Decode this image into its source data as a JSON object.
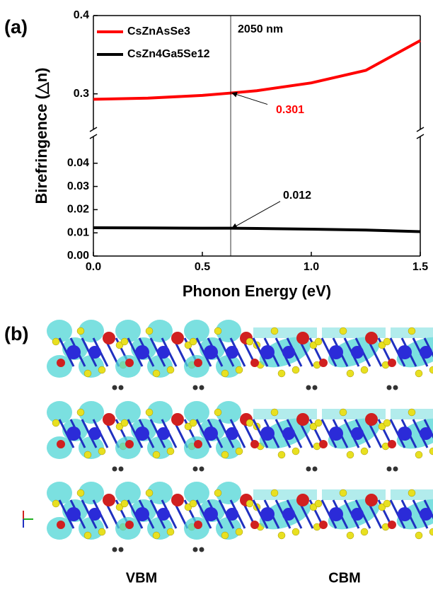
{
  "chart_data": {
    "type": "line",
    "xlabel": "Phonon Energy (eV)",
    "ylabel": "Birefringence (△n)",
    "x": [
      0,
      0.25,
      0.5,
      0.63,
      0.75,
      1.0,
      1.25,
      1.5
    ],
    "series": [
      {
        "name": "CsZnAsSe3",
        "color": "#ff0000",
        "values": [
          0.293,
          0.2945,
          0.298,
          0.301,
          0.304,
          0.314,
          0.33,
          0.368
        ]
      },
      {
        "name": "CsZn4Ga5Se12",
        "color": "#000000",
        "values": [
          0.0122,
          0.0121,
          0.012,
          0.012,
          0.0119,
          0.0116,
          0.0112,
          0.0105
        ]
      }
    ],
    "xlim": [
      0,
      1.5
    ],
    "xticks": [
      {
        "value": 0,
        "label": "0.0"
      },
      0.5,
      {
        "value": 1,
        "label": "1.0"
      },
      1.5
    ],
    "ylim": [
      0,
      0.05
    ],
    "yticks": [
      {
        "value": 0,
        "label": "0.00"
      },
      0.01,
      0.02,
      0.03,
      0.04
    ],
    "ylim_upper": [
      0.25,
      0.4
    ],
    "yticks_upper": [
      0.3,
      0.4
    ],
    "legend": "upper left",
    "annotations": [
      {
        "text": "2050 nm",
        "x": 0.63
      },
      {
        "value": 0.301,
        "x": 0.63,
        "color": "#ff0000"
      },
      {
        "value": 0.012,
        "x": 0.63,
        "color": "#000000"
      }
    ]
  },
  "panels": {
    "a": "(a)",
    "b": "(b)"
  },
  "images": {
    "left": "VBM",
    "right": "CBM"
  }
}
